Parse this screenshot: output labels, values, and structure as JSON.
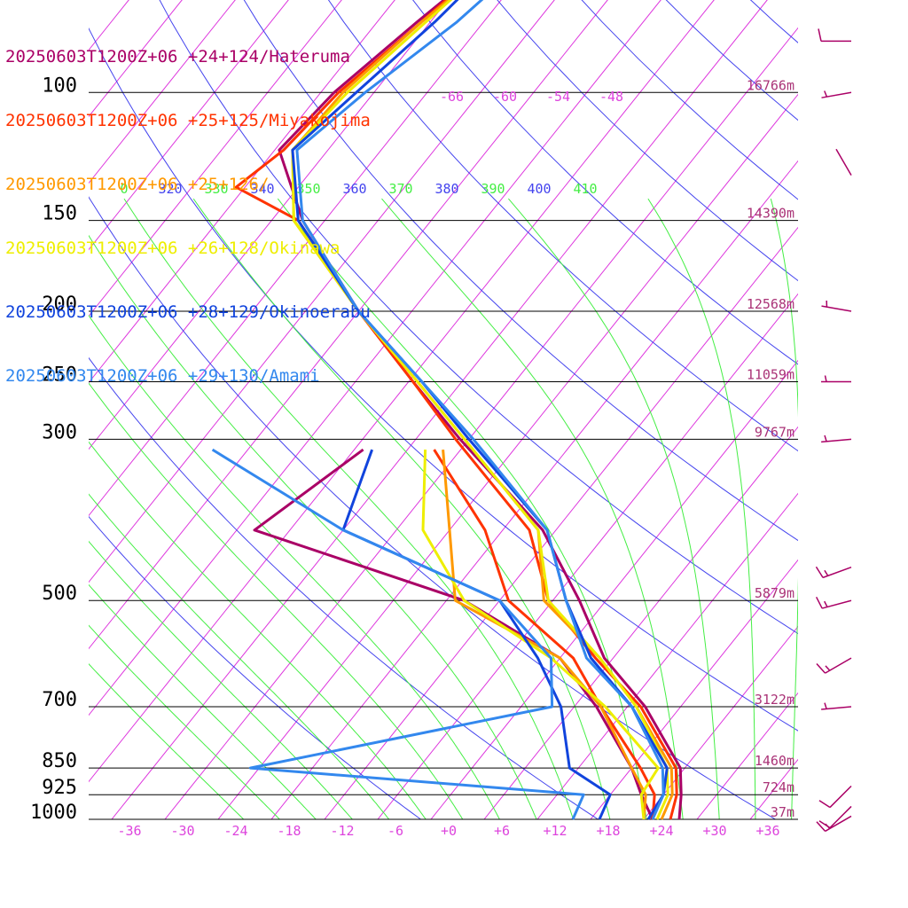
{
  "chart_data": {
    "type": "line",
    "chart_kind": "skew-T log-P sounding",
    "pressure_levels": [
      {
        "p": 100,
        "label": "100",
        "height": "16766m"
      },
      {
        "p": 150,
        "label": "150",
        "height": "14390m"
      },
      {
        "p": 200,
        "label": "200",
        "height": "12568m"
      },
      {
        "p": 250,
        "label": "250",
        "height": "11059m"
      },
      {
        "p": 300,
        "label": "300",
        "height": "9767m"
      },
      {
        "p": 500,
        "label": "500",
        "height": "5879m"
      },
      {
        "p": 700,
        "label": "700",
        "height": "3122m"
      },
      {
        "p": 850,
        "label": "850",
        "height": "1460m"
      },
      {
        "p": 925,
        "label": "925",
        "height": "724m"
      },
      {
        "p": 1000,
        "label": "1000",
        "height": "37m"
      }
    ],
    "temperature_ticks": [
      "-36",
      "-30",
      "-24",
      "-18",
      "-12",
      "-6",
      "+0",
      "+6",
      "+12",
      "+18",
      "+24",
      "+30",
      "+36"
    ],
    "temperature_tick_values": [
      -36,
      -30,
      -24,
      -18,
      -12,
      -6,
      0,
      6,
      12,
      18,
      24,
      30,
      36
    ],
    "upper_temperature_labels": [
      "-66",
      "-60",
      "-54",
      "-48"
    ],
    "upper_temperature_values": [
      -66,
      -60,
      -54,
      -48
    ],
    "theta_labels": [
      "0",
      "320",
      "330",
      "340",
      "350",
      "360",
      "370",
      "380",
      "390",
      "400",
      "410"
    ],
    "series": [
      {
        "name": "20250603T1200Z+06 +24+124/Hateruma",
        "color": "#aa0066",
        "temperature": [
          [
            60,
            -70.5
          ],
          [
            70,
            -73.5
          ],
          [
            80,
            -75.5
          ],
          [
            100,
            -78.5
          ],
          [
            120,
            -79.5
          ],
          [
            150,
            -70.5
          ],
          [
            200,
            -56
          ],
          [
            250,
            -43.5
          ],
          [
            300,
            -33
          ],
          [
            400,
            -15.5
          ],
          [
            500,
            -5
          ],
          [
            600,
            3
          ],
          [
            700,
            12
          ],
          [
            850,
            21.5
          ],
          [
            925,
            24
          ],
          [
            1000,
            26
          ]
        ],
        "dewpoint": [
          [
            310,
            -43
          ],
          [
            400,
            -48
          ],
          [
            500,
            -18
          ],
          [
            600,
            -2
          ],
          [
            700,
            6.5
          ],
          [
            850,
            16
          ],
          [
            925,
            19.5
          ],
          [
            1000,
            23
          ]
        ]
      },
      {
        "name": "20250603T1200Z+06 +25+125/Miyakojima",
        "color": "#ff3300",
        "temperature": [
          [
            60,
            -70.5
          ],
          [
            70,
            -73.5
          ],
          [
            80,
            -75
          ],
          [
            100,
            -78
          ],
          [
            120,
            -79
          ],
          [
            135,
            -81
          ],
          [
            150,
            -71
          ],
          [
            200,
            -56
          ],
          [
            250,
            -43.5
          ],
          [
            300,
            -33.5
          ],
          [
            400,
            -17
          ],
          [
            500,
            -8.5
          ],
          [
            600,
            2
          ],
          [
            700,
            11.5
          ],
          [
            850,
            21
          ],
          [
            925,
            23.5
          ],
          [
            1000,
            25
          ]
        ],
        "dewpoint": [
          [
            310,
            -35
          ],
          [
            400,
            -22
          ],
          [
            500,
            -13
          ],
          [
            600,
            -0.5
          ],
          [
            700,
            7
          ],
          [
            850,
            17
          ],
          [
            925,
            21
          ],
          [
            1000,
            23
          ]
        ]
      },
      {
        "name": "20250603T1200Z+06 +25+126/",
        "color": "#ff9900",
        "temperature": [
          [
            60,
            -71
          ],
          [
            70,
            -73
          ],
          [
            80,
            -75
          ],
          [
            100,
            -77.5
          ],
          [
            120,
            -78
          ],
          [
            150,
            -71.5
          ],
          [
            200,
            -56
          ],
          [
            250,
            -43
          ],
          [
            300,
            -32.5
          ],
          [
            400,
            -16
          ],
          [
            500,
            -9
          ],
          [
            600,
            2.5
          ],
          [
            700,
            11
          ],
          [
            850,
            20.5
          ],
          [
            925,
            23
          ],
          [
            1000,
            24
          ]
        ],
        "dewpoint": [
          [
            310,
            -34
          ],
          [
            400,
            -26
          ],
          [
            500,
            -19
          ],
          [
            600,
            -2
          ],
          [
            700,
            7
          ],
          [
            850,
            16
          ],
          [
            925,
            20
          ],
          [
            1000,
            22
          ]
        ]
      },
      {
        "name": "20250603T1200Z+06 +26+128/Okinawa",
        "color": "#eeee00",
        "temperature": [
          [
            60,
            -71.5
          ],
          [
            70,
            -73
          ],
          [
            80,
            -74.5
          ],
          [
            100,
            -77
          ],
          [
            120,
            -78
          ],
          [
            150,
            -71.5
          ],
          [
            200,
            -56
          ],
          [
            250,
            -43
          ],
          [
            300,
            -32.5
          ],
          [
            400,
            -16
          ],
          [
            500,
            -8.5
          ],
          [
            600,
            2.5
          ],
          [
            700,
            11
          ],
          [
            850,
            20
          ],
          [
            925,
            22.5
          ],
          [
            1000,
            23.5
          ]
        ],
        "dewpoint": [
          [
            310,
            -36
          ],
          [
            400,
            -29
          ],
          [
            500,
            -18
          ],
          [
            600,
            -3
          ],
          [
            700,
            7.5
          ],
          [
            850,
            19
          ],
          [
            925,
            19.5
          ],
          [
            1000,
            22
          ]
        ]
      },
      {
        "name": "20250603T1200Z+06 +28+129/Okinoerabu",
        "color": "#1144dd",
        "temperature": [
          [
            60,
            -72
          ],
          [
            70,
            -72.5
          ],
          [
            80,
            -73.5
          ],
          [
            100,
            -76
          ],
          [
            120,
            -78
          ],
          [
            150,
            -71
          ],
          [
            200,
            -56
          ],
          [
            250,
            -42.5
          ],
          [
            300,
            -32
          ],
          [
            400,
            -15
          ],
          [
            500,
            -6.5
          ],
          [
            600,
            1.5
          ],
          [
            700,
            10.5
          ],
          [
            850,
            20
          ],
          [
            925,
            22
          ],
          [
            1000,
            22.5
          ]
        ],
        "dewpoint": [
          [
            310,
            -42
          ],
          [
            400,
            -38
          ],
          [
            500,
            -14
          ],
          [
            600,
            -4.5
          ],
          [
            700,
            2.5
          ],
          [
            850,
            9
          ],
          [
            925,
            16
          ],
          [
            1000,
            17
          ]
        ]
      },
      {
        "name": "20250603T1200Z+06 +29+130/Amami",
        "color": "#3388ee",
        "temperature": [
          [
            60,
            -71.5
          ],
          [
            70,
            -69.5
          ],
          [
            80,
            -71
          ],
          [
            100,
            -75
          ],
          [
            120,
            -77.5
          ],
          [
            150,
            -70.5
          ],
          [
            200,
            -56
          ],
          [
            250,
            -42.5
          ],
          [
            300,
            -31.5
          ],
          [
            400,
            -15
          ],
          [
            500,
            -6.5
          ],
          [
            600,
            1
          ],
          [
            700,
            10.5
          ],
          [
            850,
            19.5
          ],
          [
            925,
            22
          ],
          [
            1000,
            23
          ]
        ],
        "dewpoint": [
          [
            310,
            -60
          ],
          [
            400,
            -38
          ],
          [
            500,
            -14
          ],
          [
            600,
            -3
          ],
          [
            700,
            1.5
          ],
          [
            850,
            -27
          ],
          [
            925,
            13
          ],
          [
            1000,
            14
          ]
        ]
      }
    ],
    "wind_barbs": [
      {
        "p": 70,
        "speed_kt": 15,
        "dir_deg": 280
      },
      {
        "p": 85,
        "speed_kt": 10,
        "dir_deg": 270
      },
      {
        "p": 100,
        "speed_kt": 5,
        "dir_deg": 260
      },
      {
        "p": 130,
        "speed_kt": 0,
        "dir_deg": 330
      },
      {
        "p": 200,
        "speed_kt": 5,
        "dir_deg": 280
      },
      {
        "p": 250,
        "speed_kt": 5,
        "dir_deg": 270
      },
      {
        "p": 300,
        "speed_kt": 5,
        "dir_deg": 265
      },
      {
        "p": 450,
        "speed_kt": 15,
        "dir_deg": 250
      },
      {
        "p": 500,
        "speed_kt": 15,
        "dir_deg": 255
      },
      {
        "p": 600,
        "speed_kt": 15,
        "dir_deg": 240
      },
      {
        "p": 700,
        "speed_kt": 5,
        "dir_deg": 265
      },
      {
        "p": 900,
        "speed_kt": 10,
        "dir_deg": 225
      },
      {
        "p": 960,
        "speed_kt": 10,
        "dir_deg": 225
      },
      {
        "p": 990,
        "speed_kt": 15,
        "dir_deg": 240
      }
    ],
    "colors": {
      "isotherm": "#dd33dd",
      "dry_adiabat": "#4444ee",
      "moist_adiabat": "#44ee44",
      "isobar": "#000000",
      "labels": "#dd44dd",
      "wind_barb": "#aa0066"
    }
  }
}
